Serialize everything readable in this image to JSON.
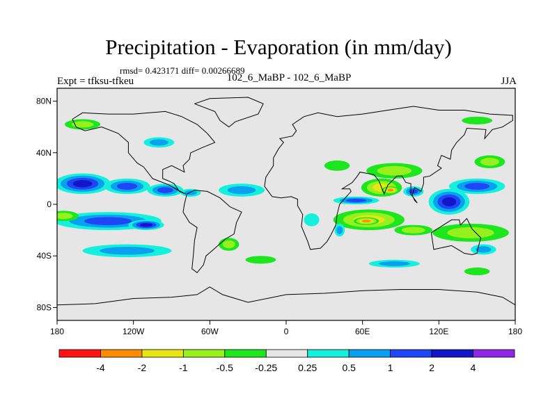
{
  "chart_data": {
    "type": "heatmap",
    "title": "Precipitation - Evaporation (in mm/day)",
    "stats_text": "rmsd= 0.423171  diff= 0.00266689",
    "left_label": "Expt = tfksu-tfkeu",
    "center_label": "102_6_MaBP - 102_6_MaBP",
    "right_label": "JJA",
    "x_range": [
      -180,
      180
    ],
    "y_range": [
      -90,
      90
    ],
    "x_ticks": [
      {
        "value": -180,
        "label": "180"
      },
      {
        "value": -120,
        "label": "120W"
      },
      {
        "value": -60,
        "label": "60W"
      },
      {
        "value": 0,
        "label": "0"
      },
      {
        "value": 60,
        "label": "60E"
      },
      {
        "value": 120,
        "label": "120E"
      },
      {
        "value": 180,
        "label": "180"
      }
    ],
    "y_ticks": [
      {
        "value": 80,
        "label": "80N"
      },
      {
        "value": 40,
        "label": "40N"
      },
      {
        "value": 0,
        "label": "0"
      },
      {
        "value": -40,
        "label": "40S"
      },
      {
        "value": -80,
        "label": "80S"
      }
    ],
    "colorbar": {
      "colors": [
        "#ff1414",
        "#ff8c00",
        "#e6e614",
        "#96f01e",
        "#1ee61e",
        "#e6e6e6",
        "#14f0dc",
        "#0aa0f0",
        "#1e46f5",
        "#1414c8",
        "#8c28e6"
      ],
      "labels": [
        "-4",
        "-2",
        "-1",
        "-0.5",
        "-0.25",
        "0.25",
        "0.5",
        "1",
        "2",
        "4"
      ]
    },
    "anomalies": [
      {
        "name": "north-pacific-wet",
        "lon": -160,
        "lat": 16,
        "rlon": 22,
        "rlat": 8,
        "value": 2.3
      },
      {
        "name": "north-pacific-east",
        "lon": -125,
        "lat": 14,
        "rlon": 18,
        "rlat": 6,
        "value": 1.4
      },
      {
        "name": "east-pacific-itcz",
        "lon": -95,
        "lat": 11,
        "rlon": 14,
        "rlat": 5,
        "value": 1.0
      },
      {
        "name": "central-america",
        "lon": -75,
        "lat": 9,
        "rlon": 8,
        "rlat": 3,
        "value": 0.8
      },
      {
        "name": "tropical-atlantic",
        "lon": -35,
        "lat": 11,
        "rlon": 18,
        "rlat": 5,
        "value": 0.7
      },
      {
        "name": "south-pacific-band",
        "lon": -140,
        "lat": -13,
        "rlon": 42,
        "rlat": 7,
        "value": 1.3
      },
      {
        "name": "south-pacific-core",
        "lon": -110,
        "lat": -16,
        "rlon": 14,
        "rlat": 4,
        "value": 2.4
      },
      {
        "name": "south-pacific-west",
        "lon": -175,
        "lat": -9,
        "rlon": 12,
        "rlat": 4,
        "value": -0.7
      },
      {
        "name": "south-pacific-mid",
        "lon": -125,
        "lat": -36,
        "rlon": 35,
        "rlat": 5,
        "value": 0.7
      },
      {
        "name": "south-america-east",
        "lon": -45,
        "lat": -31,
        "rlon": 8,
        "rlat": 5,
        "value": -0.6
      },
      {
        "name": "southern-ocean-atl",
        "lon": -20,
        "lat": -43,
        "rlon": 12,
        "rlat": 3,
        "value": -0.5
      },
      {
        "name": "indian-ocean-dry",
        "lon": 65,
        "lat": -12,
        "rlon": 28,
        "rlat": 8,
        "value": -1.8
      },
      {
        "name": "indian-ocean-core",
        "lon": 63,
        "lat": -13,
        "rlon": 10,
        "rlat": 3,
        "value": -3.6
      },
      {
        "name": "arabian-sea",
        "lon": 75,
        "lat": 13,
        "rlon": 16,
        "rlat": 7,
        "value": -1.4
      },
      {
        "name": "india-core",
        "lon": 82,
        "lat": 11,
        "rlon": 7,
        "rlat": 3,
        "value": -2.5
      },
      {
        "name": "asia-north",
        "lon": 85,
        "lat": 26,
        "rlon": 22,
        "rlat": 6,
        "value": -0.6
      },
      {
        "name": "central-asia",
        "lon": 40,
        "lat": 30,
        "rlon": 10,
        "rlat": 4,
        "value": -0.4
      },
      {
        "name": "indian-ocean-wet",
        "lon": 55,
        "lat": 3,
        "rlon": 18,
        "rlat": 3,
        "value": 1.2
      },
      {
        "name": "maritime-continent",
        "lon": 128,
        "lat": 2,
        "rlon": 16,
        "rlat": 10,
        "value": 2.5
      },
      {
        "name": "bay-of-bengal",
        "lon": 100,
        "lat": 10,
        "rlon": 8,
        "rlat": 4,
        "value": 1.3
      },
      {
        "name": "west-pacific-north",
        "lon": 150,
        "lat": 14,
        "rlon": 22,
        "rlat": 6,
        "value": 1.3
      },
      {
        "name": "west-pacific-south",
        "lon": 145,
        "lat": -22,
        "rlon": 30,
        "rlat": 7,
        "value": -0.7
      },
      {
        "name": "south-indian",
        "lon": 100,
        "lat": -20,
        "rlon": 15,
        "rlat": 4,
        "value": -0.6
      },
      {
        "name": "australia-east",
        "lon": 155,
        "lat": -35,
        "rlon": 10,
        "rlat": 4,
        "value": 0.8
      },
      {
        "name": "japan-east",
        "lon": 160,
        "lat": 33,
        "rlon": 12,
        "rlat": 5,
        "value": -0.6
      },
      {
        "name": "north-atlantic",
        "lon": -100,
        "lat": 48,
        "rlon": 12,
        "rlat": 4,
        "value": 0.7
      },
      {
        "name": "arctic-pacific",
        "lon": -160,
        "lat": 62,
        "rlon": 14,
        "rlat": 4,
        "value": -0.6
      },
      {
        "name": "arctic-east",
        "lon": 150,
        "lat": 65,
        "rlon": 12,
        "rlat": 3,
        "value": -0.5
      },
      {
        "name": "africa-interior",
        "lon": 20,
        "lat": -12,
        "rlon": 6,
        "rlat": 5,
        "value": 0.4
      },
      {
        "name": "madagascar",
        "lon": 42,
        "lat": -20,
        "rlon": 4,
        "rlat": 5,
        "value": 0.6
      },
      {
        "name": "southern-ocean-ind",
        "lon": 85,
        "lat": -46,
        "rlon": 20,
        "rlat": 3,
        "value": 0.5
      },
      {
        "name": "southern-ocean-aus",
        "lon": 150,
        "lat": -52,
        "rlon": 10,
        "rlat": 3,
        "value": -0.4
      }
    ],
    "coastlines": [
      {
        "name": "north-america",
        "points": [
          [
            -168,
            66
          ],
          [
            -160,
            71
          ],
          [
            -140,
            70
          ],
          [
            -120,
            70
          ],
          [
            -95,
            72
          ],
          [
            -82,
            68
          ],
          [
            -70,
            62
          ],
          [
            -62,
            55
          ],
          [
            -56,
            48
          ],
          [
            -66,
            44
          ],
          [
            -75,
            40
          ],
          [
            -76,
            35
          ],
          [
            -81,
            30
          ],
          [
            -80,
            25
          ],
          [
            -90,
            30
          ],
          [
            -97,
            27
          ],
          [
            -97,
            20
          ],
          [
            -92,
            18
          ],
          [
            -88,
            16
          ],
          [
            -84,
            10
          ],
          [
            -79,
            8
          ],
          [
            -85,
            11
          ],
          [
            -92,
            15
          ],
          [
            -105,
            20
          ],
          [
            -112,
            29
          ],
          [
            -117,
            32
          ],
          [
            -124,
            40
          ],
          [
            -124,
            48
          ],
          [
            -132,
            55
          ],
          [
            -145,
            60
          ],
          [
            -158,
            57
          ],
          [
            -165,
            60
          ],
          [
            -168,
            66
          ]
        ]
      },
      {
        "name": "south-america",
        "points": [
          [
            -78,
            8
          ],
          [
            -72,
            11
          ],
          [
            -62,
            10
          ],
          [
            -52,
            5
          ],
          [
            -44,
            -2
          ],
          [
            -35,
            -6
          ],
          [
            -39,
            -14
          ],
          [
            -41,
            -23
          ],
          [
            -48,
            -27
          ],
          [
            -57,
            -35
          ],
          [
            -63,
            -40
          ],
          [
            -65,
            -47
          ],
          [
            -70,
            -53
          ],
          [
            -74,
            -50
          ],
          [
            -73,
            -40
          ],
          [
            -72,
            -28
          ],
          [
            -70,
            -18
          ],
          [
            -76,
            -14
          ],
          [
            -81,
            -6
          ],
          [
            -80,
            0
          ],
          [
            -78,
            8
          ]
        ]
      },
      {
        "name": "greenland",
        "points": [
          [
            -72,
            78
          ],
          [
            -60,
            82
          ],
          [
            -30,
            83
          ],
          [
            -18,
            78
          ],
          [
            -22,
            70
          ],
          [
            -40,
            64
          ],
          [
            -45,
            60
          ],
          [
            -52,
            65
          ],
          [
            -56,
            72
          ],
          [
            -72,
            78
          ]
        ]
      },
      {
        "name": "afro-eurasia",
        "points": [
          [
            -10,
            36
          ],
          [
            -6,
            43
          ],
          [
            -2,
            48
          ],
          [
            -5,
            51
          ],
          [
            5,
            53
          ],
          [
            8,
            57
          ],
          [
            5,
            62
          ],
          [
            14,
            68
          ],
          [
            25,
            71
          ],
          [
            40,
            68
          ],
          [
            60,
            70
          ],
          [
            80,
            73
          ],
          [
            100,
            76
          ],
          [
            120,
            73
          ],
          [
            140,
            73
          ],
          [
            160,
            70
          ],
          [
            178,
            69
          ],
          [
            178,
            65
          ],
          [
            170,
            60
          ],
          [
            162,
            58
          ],
          [
            156,
            51
          ],
          [
            157,
            58
          ],
          [
            142,
            59
          ],
          [
            140,
            54
          ],
          [
            134,
            48
          ],
          [
            130,
            42
          ],
          [
            129,
            35
          ],
          [
            122,
            38
          ],
          [
            119,
            30
          ],
          [
            122,
            28
          ],
          [
            113,
            22
          ],
          [
            108,
            21
          ],
          [
            108,
            16
          ],
          [
            106,
            10
          ],
          [
            101,
            13
          ],
          [
            99,
            7
          ],
          [
            101,
            3
          ],
          [
            103,
            1
          ],
          [
            98,
            8
          ],
          [
            98,
            16
          ],
          [
            94,
            17
          ],
          [
            91,
            22
          ],
          [
            87,
            22
          ],
          [
            80,
            15
          ],
          [
            77,
            8
          ],
          [
            73,
            18
          ],
          [
            69,
            23
          ],
          [
            58,
            25
          ],
          [
            56,
            22
          ],
          [
            52,
            17
          ],
          [
            44,
            12
          ],
          [
            50,
            12
          ],
          [
            51,
            10
          ],
          [
            42,
            0
          ],
          [
            40,
            -8
          ],
          [
            39,
            -16
          ],
          [
            35,
            -24
          ],
          [
            32,
            -29
          ],
          [
            27,
            -34
          ],
          [
            19,
            -35
          ],
          [
            17,
            -29
          ],
          [
            12,
            -17
          ],
          [
            13,
            -8
          ],
          [
            9,
            -1
          ],
          [
            9,
            4
          ],
          [
            4,
            6
          ],
          [
            -4,
            5
          ],
          [
            -11,
            6
          ],
          [
            -17,
            14
          ],
          [
            -16,
            21
          ],
          [
            -10,
            30
          ],
          [
            -10,
            36
          ]
        ]
      },
      {
        "name": "australia",
        "points": [
          [
            114,
            -22
          ],
          [
            122,
            -17
          ],
          [
            130,
            -12
          ],
          [
            136,
            -12
          ],
          [
            137,
            -16
          ],
          [
            142,
            -11
          ],
          [
            146,
            -19
          ],
          [
            153,
            -26
          ],
          [
            151,
            -33
          ],
          [
            150,
            -38
          ],
          [
            146,
            -39
          ],
          [
            140,
            -38
          ],
          [
            135,
            -35
          ],
          [
            130,
            -32
          ],
          [
            116,
            -35
          ],
          [
            114,
            -22
          ]
        ]
      },
      {
        "name": "antarctica-coast",
        "points": [
          [
            -180,
            -78
          ],
          [
            -150,
            -77
          ],
          [
            -120,
            -73
          ],
          [
            -90,
            -72
          ],
          [
            -70,
            -70
          ],
          [
            -60,
            -64
          ],
          [
            -50,
            -70
          ],
          [
            -30,
            -76
          ],
          [
            0,
            -70
          ],
          [
            30,
            -69
          ],
          [
            60,
            -67
          ],
          [
            90,
            -66
          ],
          [
            120,
            -66
          ],
          [
            150,
            -68
          ],
          [
            170,
            -72
          ],
          [
            180,
            -78
          ]
        ]
      }
    ]
  }
}
